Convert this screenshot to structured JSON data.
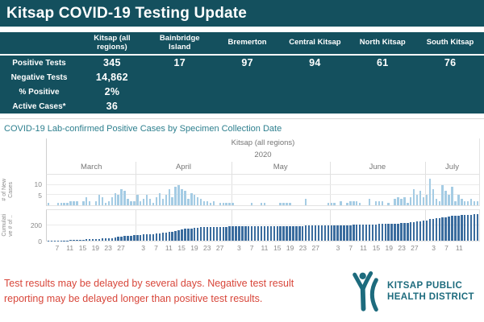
{
  "header": {
    "title": "Kitsap COVID-19 Testing Update"
  },
  "summary_table": {
    "columns": [
      "Kitsap (all regions)",
      "Bainbridge Island",
      "Bremerton",
      "Central Kitsap",
      "North Kitsap",
      "South Kitsap"
    ],
    "rows": [
      {
        "label": "Positive Tests",
        "values": [
          "345",
          "17",
          "97",
          "94",
          "61",
          "76"
        ]
      },
      {
        "label": "Negative Tests",
        "values": [
          "14,862",
          "",
          "",
          "",
          "",
          ""
        ]
      },
      {
        "label": "% Positive",
        "values": [
          "2%",
          "",
          "",
          "",
          "",
          ""
        ]
      },
      {
        "label": "Active Cases*",
        "values": [
          "36",
          "",
          "",
          "",
          "",
          ""
        ]
      }
    ]
  },
  "chart_data": {
    "type": "bar",
    "title": "COVID-19 Lab-confirmed Positive Cases by Specimen Collection Date",
    "pane_title": "Kitsap (all regions)",
    "year": "2020",
    "grid": true,
    "months": [
      {
        "label": "March",
        "start_day": 4,
        "days": 28,
        "ticks": [
          7,
          11,
          15,
          19,
          23,
          27
        ]
      },
      {
        "label": "April",
        "start_day": 1,
        "days": 30,
        "ticks": [
          3,
          7,
          11,
          15,
          19,
          23,
          27
        ]
      },
      {
        "label": "May",
        "start_day": 1,
        "days": 31,
        "ticks": [
          3,
          7,
          11,
          15,
          19,
          23,
          27
        ]
      },
      {
        "label": "June",
        "start_day": 1,
        "days": 30,
        "ticks": [
          3,
          7,
          11,
          15,
          19,
          23,
          27
        ]
      },
      {
        "label": "July",
        "start_day": 1,
        "days": 17,
        "ticks": [
          3,
          7,
          11
        ]
      }
    ],
    "new_cases": [
      1,
      0,
      0,
      1,
      1,
      1,
      1,
      2,
      2,
      2,
      0,
      2,
      4,
      2,
      0,
      2,
      5,
      4,
      1,
      2,
      4,
      6,
      5,
      8,
      7,
      3,
      2,
      2,
      5,
      2,
      3,
      5,
      3,
      1,
      4,
      6,
      3,
      5,
      8,
      4,
      9,
      10,
      8,
      7,
      3,
      6,
      5,
      4,
      3,
      2,
      2,
      1,
      2,
      0,
      1,
      1,
      1,
      1,
      1,
      0,
      0,
      0,
      0,
      0,
      1,
      0,
      0,
      1,
      1,
      0,
      0,
      0,
      0,
      1,
      1,
      1,
      1,
      0,
      0,
      0,
      0,
      3,
      0,
      0,
      0,
      0,
      0,
      0,
      1,
      1,
      1,
      0,
      2,
      0,
      1,
      2,
      2,
      2,
      1,
      0,
      0,
      3,
      0,
      2,
      2,
      2,
      0,
      1,
      0,
      3,
      4,
      3,
      4,
      1,
      4,
      8,
      5,
      7,
      4,
      5,
      13,
      8,
      3,
      2,
      10,
      7,
      5,
      9,
      2,
      5,
      3,
      2,
      2,
      3,
      2,
      2
    ],
    "total_cases": 345,
    "series": [
      {
        "name": "# of New Cases",
        "axis_lines": [
          "# of New",
          "Cases"
        ],
        "yticks": [
          10,
          5
        ],
        "ymax": 15,
        "color": "#a5cce4",
        "cumulative": false
      },
      {
        "name": "Cumulative # of Cases",
        "axis_lines": [
          "Cumulati",
          "ve # of .."
        ],
        "yticks": [
          200,
          0
        ],
        "ymax": 400,
        "color": "#3a6c9e",
        "cumulative": true
      }
    ]
  },
  "footer": {
    "disclaimer_line1": "Test results may be delayed by several days. Negative test result",
    "disclaimer_line2": "reporting may be delayed longer than positive test results.",
    "logo_line1": "KITSAP PUBLIC",
    "logo_line2": "HEALTH DISTRICT"
  },
  "colors": {
    "banner_teal": "#14505e",
    "chart_title_teal": "#2d7f8e",
    "new_cases_bar": "#a5cce4",
    "cumulative_bar": "#3a6c9e",
    "disclaimer_red": "#d8463a",
    "logo_teal": "#1d6b7d"
  }
}
